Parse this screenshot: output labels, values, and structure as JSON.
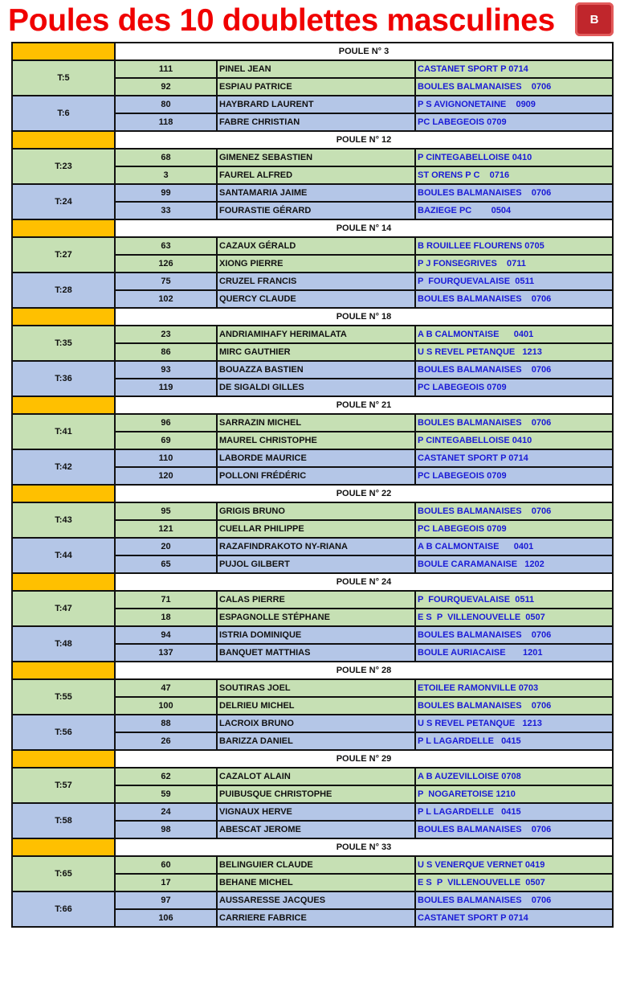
{
  "title": "Poules des 10 doublettes masculines",
  "logo_text": "LA BOULE BALMANAISE",
  "colors": {
    "green": "#c6e0b4",
    "blue": "#b4c6e7",
    "orange": "#ffc000",
    "club_text": "#1a1ad6",
    "title": "#f00000"
  },
  "poules": [
    {
      "label": "POULE N° 3",
      "teams": [
        {
          "team": "T:5",
          "players": [
            {
              "num": "111",
              "name": "PINEL JEAN",
              "club": "CASTANET SPORT P 0714"
            },
            {
              "num": "92",
              "name": "ESPIAU PATRICE",
              "club": "BOULES BALMANAISES    0706"
            }
          ]
        },
        {
          "team": "T:6",
          "players": [
            {
              "num": "80",
              "name": "HAYBRARD LAURENT",
              "club": "P S AVIGNONETAINE    0909"
            },
            {
              "num": "118",
              "name": "FABRE CHRISTIAN",
              "club": "PC LABEGEOIS 0709"
            }
          ]
        }
      ]
    },
    {
      "label": "POULE N° 12",
      "teams": [
        {
          "team": "T:23",
          "players": [
            {
              "num": "68",
              "name": "GIMENEZ SEBASTIEN",
              "club": "P CINTEGABELLOISE 0410"
            },
            {
              "num": "3",
              "name": "FAUREL ALFRED",
              "club": "ST ORENS P C    0716"
            }
          ]
        },
        {
          "team": "T:24",
          "players": [
            {
              "num": "99",
              "name": "SANTAMARIA JAIME",
              "club": "BOULES BALMANAISES    0706"
            },
            {
              "num": "33",
              "name": "FOURASTIE GÉRARD",
              "club": "BAZIEGE PC        0504"
            }
          ]
        }
      ]
    },
    {
      "label": "POULE N° 14",
      "teams": [
        {
          "team": "T:27",
          "players": [
            {
              "num": "63",
              "name": "CAZAUX GÉRALD",
              "club": "B ROUILLEE FLOURENS 0705"
            },
            {
              "num": "126",
              "name": "XIONG PIERRE",
              "club": "P J FONSEGRIVES    0711"
            }
          ]
        },
        {
          "team": "T:28",
          "players": [
            {
              "num": "75",
              "name": "CRUZEL FRANCIS",
              "club": "P  FOURQUEVALAISE  0511"
            },
            {
              "num": "102",
              "name": "QUERCY CLAUDE",
              "club": "BOULES BALMANAISES    0706"
            }
          ]
        }
      ]
    },
    {
      "label": "POULE N° 18",
      "teams": [
        {
          "team": "T:35",
          "players": [
            {
              "num": "23",
              "name": "ANDRIAMIHAFY HERIMALATA",
              "club": "A B CALMONTAISE      0401"
            },
            {
              "num": "86",
              "name": "MIRC GAUTHIER",
              "club": "U S REVEL PETANQUE   1213"
            }
          ]
        },
        {
          "team": "T:36",
          "players": [
            {
              "num": "93",
              "name": "BOUAZZA BASTIEN",
              "club": "BOULES BALMANAISES    0706"
            },
            {
              "num": "119",
              "name": "DE SIGALDI GILLES",
              "club": "PC LABEGEOIS 0709"
            }
          ]
        }
      ]
    },
    {
      "label": "POULE N° 21",
      "teams": [
        {
          "team": "T:41",
          "players": [
            {
              "num": "96",
              "name": "SARRAZIN MICHEL",
              "club": "BOULES BALMANAISES    0706"
            },
            {
              "num": "69",
              "name": "MAUREL CHRISTOPHE",
              "club": "P CINTEGABELLOISE 0410"
            }
          ]
        },
        {
          "team": "T:42",
          "players": [
            {
              "num": "110",
              "name": "LABORDE MAURICE",
              "club": "CASTANET SPORT P 0714"
            },
            {
              "num": "120",
              "name": "POLLONI FRÉDÉRIC",
              "club": "PC LABEGEOIS 0709"
            }
          ]
        }
      ]
    },
    {
      "label": "POULE N° 22",
      "teams": [
        {
          "team": "T:43",
          "players": [
            {
              "num": "95",
              "name": "GRIGIS BRUNO",
              "club": "BOULES BALMANAISES    0706"
            },
            {
              "num": "121",
              "name": "CUELLAR PHILIPPE",
              "club": "PC LABEGEOIS 0709"
            }
          ]
        },
        {
          "team": "T:44",
          "players": [
            {
              "num": "20",
              "name": "RAZAFINDRAKOTO NY-RIANA",
              "club": "A B CALMONTAISE      0401"
            },
            {
              "num": "65",
              "name": "PUJOL GILBERT",
              "club": "BOULE CARAMANAISE   1202"
            }
          ]
        }
      ]
    },
    {
      "label": "POULE N° 24",
      "teams": [
        {
          "team": "T:47",
          "players": [
            {
              "num": "71",
              "name": "CALAS PIERRE",
              "club": "P  FOURQUEVALAISE  0511"
            },
            {
              "num": "18",
              "name": "ESPAGNOLLE STÉPHANE",
              "club": "E S  P  VILLENOUVELLE  0507"
            }
          ]
        },
        {
          "team": "T:48",
          "players": [
            {
              "num": "94",
              "name": "ISTRIA DOMINIQUE",
              "club": "BOULES BALMANAISES    0706"
            },
            {
              "num": "137",
              "name": "BANQUET MATTHIAS",
              "club": "BOULE AURIACAISE       1201"
            }
          ]
        }
      ]
    },
    {
      "label": "POULE N° 28",
      "teams": [
        {
          "team": "T:55",
          "players": [
            {
              "num": "47",
              "name": "SOUTIRAS JOEL",
              "club": "ETOILEE RAMONVILLE 0703"
            },
            {
              "num": "100",
              "name": "DELRIEU MICHEL",
              "club": "BOULES BALMANAISES    0706"
            }
          ]
        },
        {
          "team": "T:56",
          "players": [
            {
              "num": "88",
              "name": "LACROIX BRUNO",
              "club": "U S REVEL PETANQUE   1213"
            },
            {
              "num": "26",
              "name": "BARIZZA DANIEL",
              "club": "P L LAGARDELLE   0415"
            }
          ]
        }
      ]
    },
    {
      "label": "POULE N° 29",
      "teams": [
        {
          "team": "T:57",
          "players": [
            {
              "num": "62",
              "name": "CAZALOT ALAIN",
              "club": "A B AUZEVILLOISE 0708"
            },
            {
              "num": "59",
              "name": "PUIBUSQUE CHRISTOPHE",
              "club": "P  NOGARETOISE 1210"
            }
          ]
        },
        {
          "team": "T:58",
          "players": [
            {
              "num": "24",
              "name": "VIGNAUX HERVE",
              "club": "P L LAGARDELLE   0415"
            },
            {
              "num": "98",
              "name": "ABESCAT JEROME",
              "club": "BOULES BALMANAISES    0706"
            }
          ]
        }
      ]
    },
    {
      "label": "POULE N° 33",
      "teams": [
        {
          "team": "T:65",
          "players": [
            {
              "num": "60",
              "name": "BELINGUIER CLAUDE",
              "club": "U S VENERQUE VERNET 0419"
            },
            {
              "num": "17",
              "name": "BEHANE MICHEL",
              "club": "E S  P  VILLENOUVELLE  0507"
            }
          ]
        },
        {
          "team": "T:66",
          "players": [
            {
              "num": "97",
              "name": "AUSSARESSE JACQUES",
              "club": "BOULES BALMANAISES    0706"
            },
            {
              "num": "106",
              "name": "CARRIERE FABRICE",
              "club": "CASTANET SPORT P 0714"
            }
          ]
        }
      ]
    }
  ]
}
